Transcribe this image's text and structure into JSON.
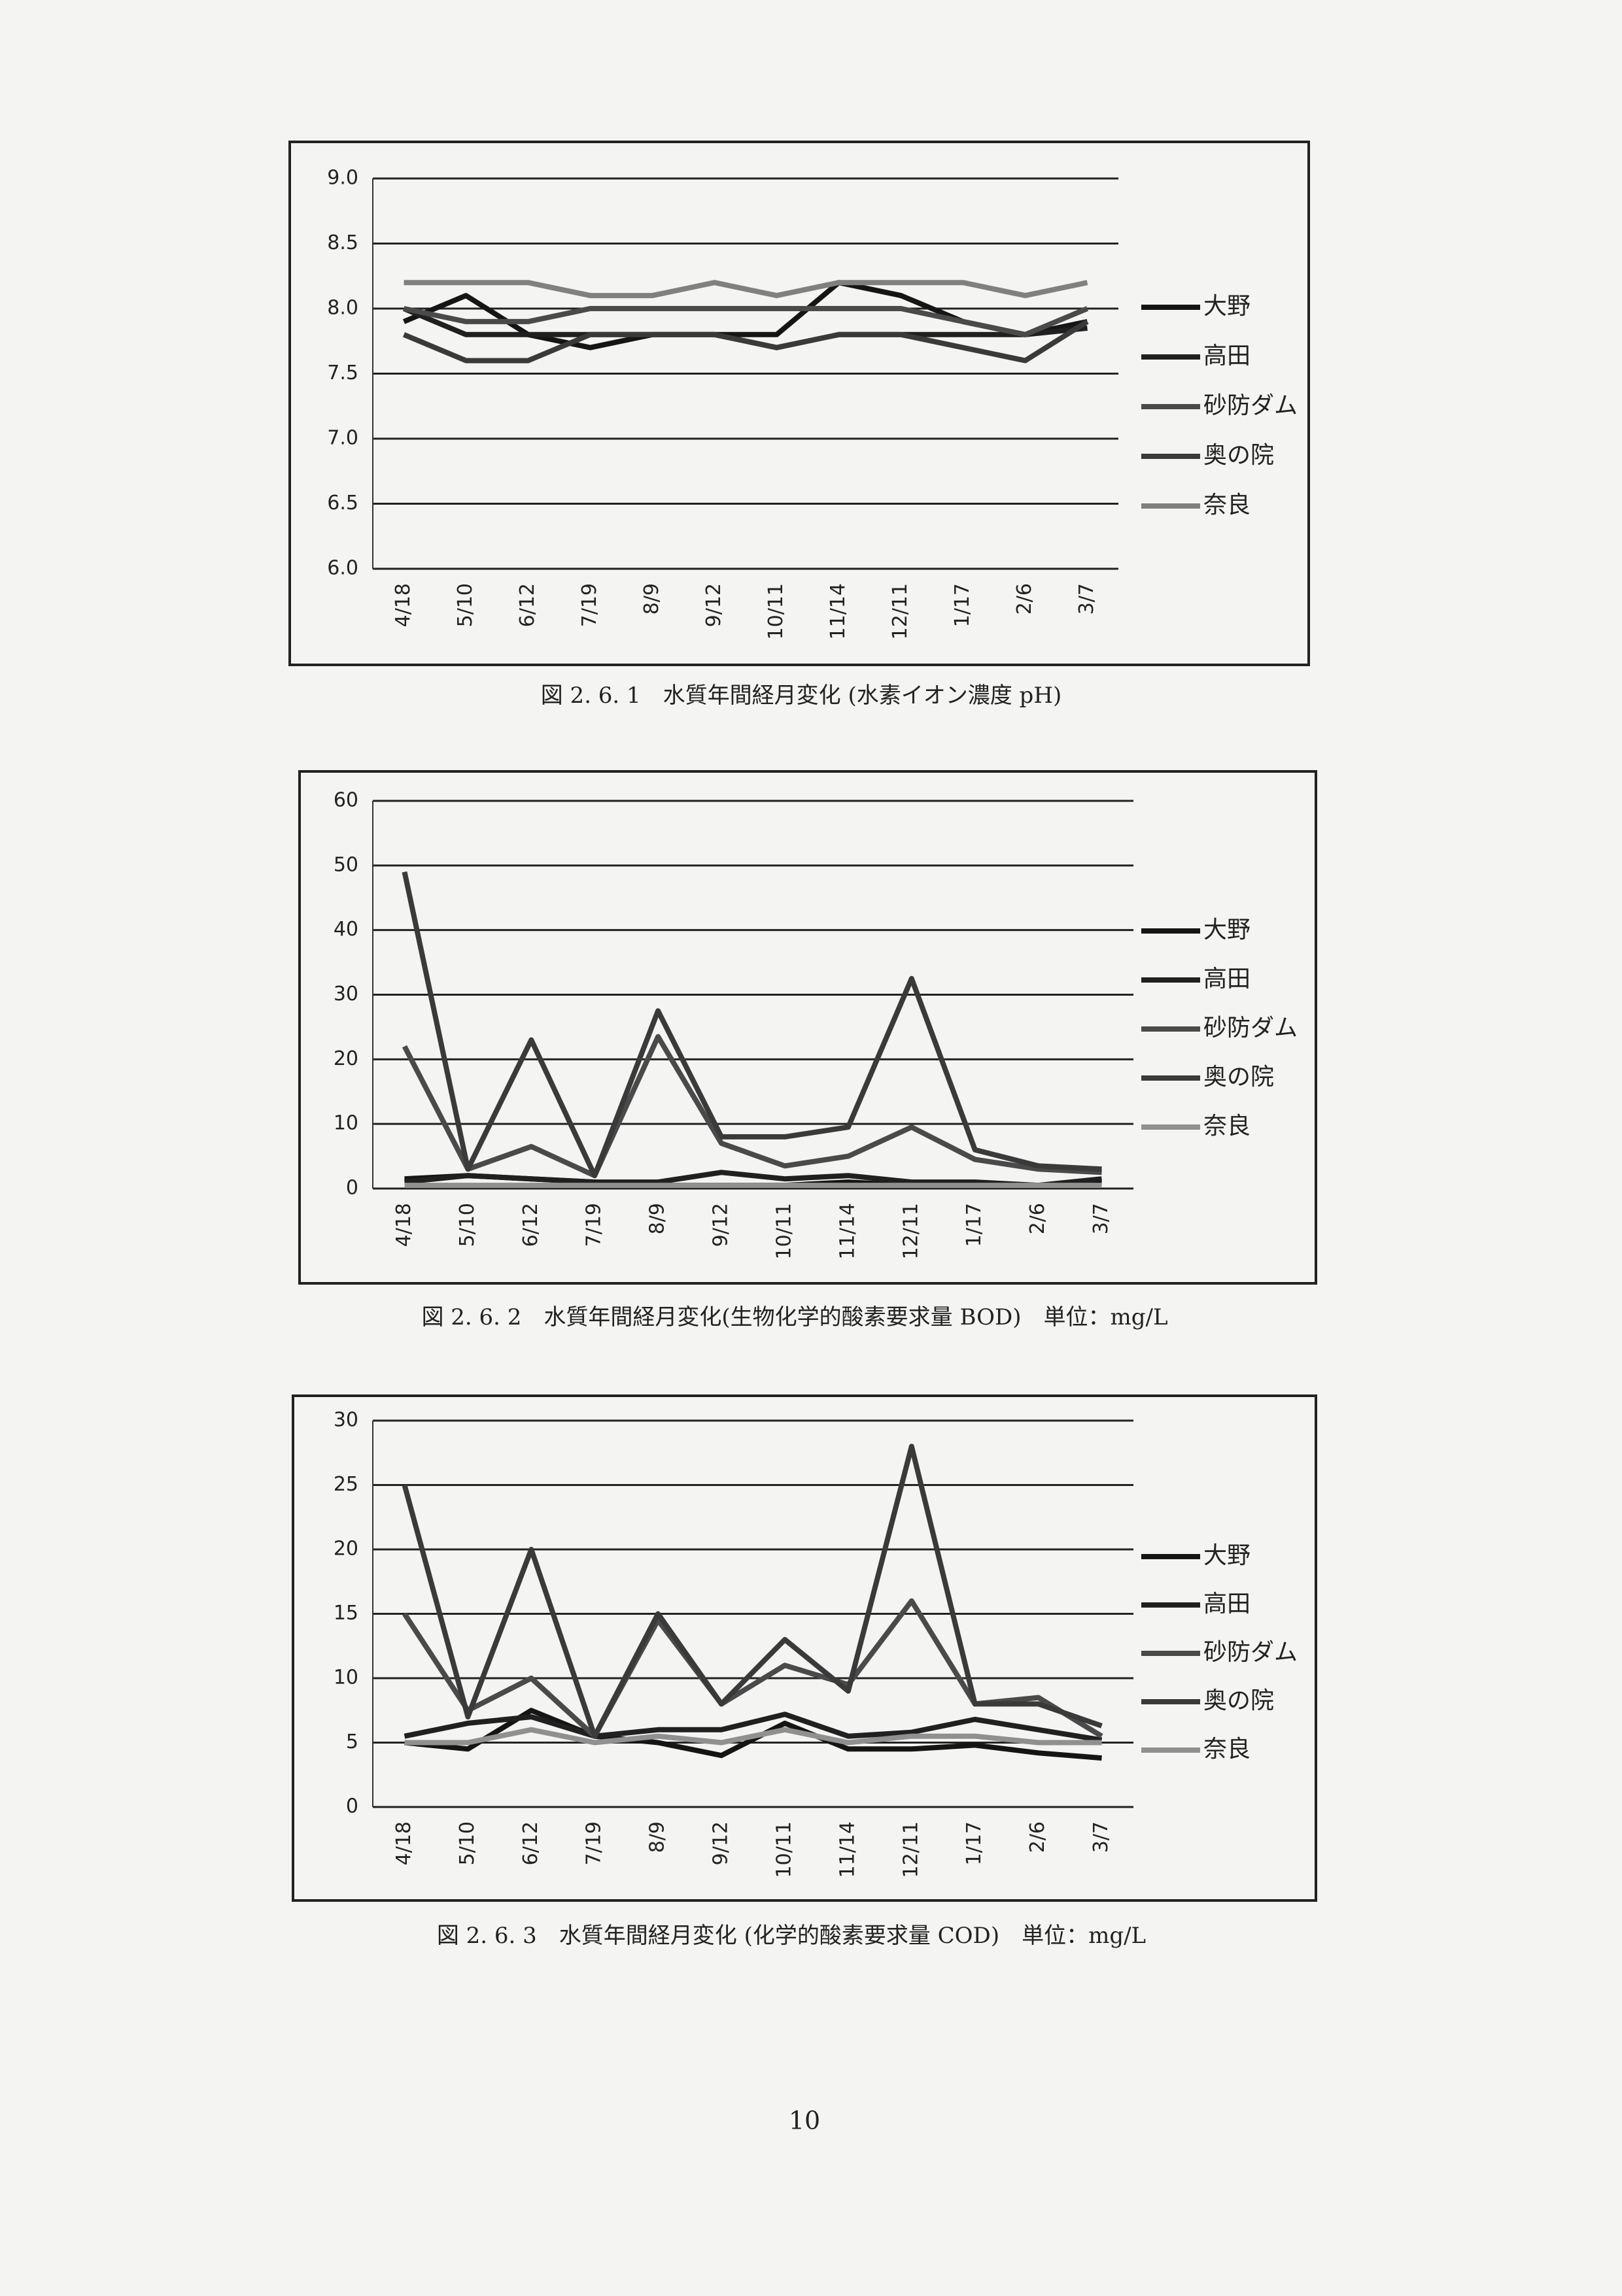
{
  "chart_data": [
    {
      "type": "line",
      "caption": "図 2. 6. 1　水質年間経月変化 (水素イオン濃度 pH)",
      "categories": [
        "4/18",
        "5/10",
        "6/12",
        "7/19",
        "8/9",
        "9/12",
        "10/11",
        "11/14",
        "12/11",
        "1/17",
        "2/6",
        "3/7"
      ],
      "ylim": [
        6,
        9
      ],
      "yticks": [
        {
          "value": 6,
          "label": "6.0"
        },
        {
          "value": 6.5,
          "label": "6.5"
        },
        {
          "value": 7,
          "label": "7.0"
        },
        {
          "value": 7.5,
          "label": "7.5"
        },
        {
          "value": 8,
          "label": "8.0"
        },
        {
          "value": 8.5,
          "label": "8.5"
        },
        {
          "value": 9,
          "label": "9.0"
        }
      ],
      "grid": true,
      "series": [
        {
          "name": "大野",
          "color": "#151515",
          "values": [
            7.9,
            8.1,
            7.8,
            7.7,
            7.8,
            7.8,
            7.8,
            8.2,
            8.1,
            7.9,
            7.8,
            7.9
          ]
        },
        {
          "name": "高田",
          "color": "#202020",
          "values": [
            8.0,
            7.8,
            7.8,
            7.8,
            7.8,
            7.8,
            7.7,
            7.8,
            7.8,
            7.8,
            7.8,
            7.85
          ]
        },
        {
          "name": "砂防ダム",
          "color": "#4a4a4a",
          "values": [
            8.0,
            7.9,
            7.9,
            8.0,
            8.0,
            8.0,
            8.0,
            8.0,
            8.0,
            7.9,
            7.8,
            8.0
          ]
        },
        {
          "name": "奥の院",
          "color": "#3a3a3a",
          "values": [
            7.8,
            7.6,
            7.6,
            7.8,
            7.8,
            7.8,
            7.7,
            7.8,
            7.8,
            7.7,
            7.6,
            7.9
          ]
        },
        {
          "name": "奈良",
          "color": "#808080",
          "values": [
            8.2,
            8.2,
            8.2,
            8.1,
            8.1,
            8.2,
            8.1,
            8.2,
            8.2,
            8.2,
            8.1,
            8.2
          ]
        }
      ]
    },
    {
      "type": "line",
      "caption": "図 2. 6. 2　水質年間経月変化(生物化学的酸素要求量 BOD)　単位：mg/L",
      "categories": [
        "4/18",
        "5/10",
        "6/12",
        "7/19",
        "8/9",
        "9/12",
        "10/11",
        "11/14",
        "12/11",
        "1/17",
        "2/6",
        "3/7"
      ],
      "ylim": [
        0,
        60
      ],
      "yticks": [
        0,
        10,
        20,
        30,
        40,
        50,
        60
      ],
      "grid": true,
      "series": [
        {
          "name": "大野",
          "color": "#151515",
          "values": [
            1.5,
            2,
            1.5,
            1,
            0.5,
            0.5,
            0.5,
            1,
            0.5,
            0.5,
            0.5,
            1
          ]
        },
        {
          "name": "高田",
          "color": "#202020",
          "values": [
            1,
            2,
            1.5,
            1,
            1,
            2.5,
            1.5,
            2,
            1,
            1,
            0.5,
            1.5
          ]
        },
        {
          "name": "砂防ダム",
          "color": "#4a4a4a",
          "values": [
            22,
            3,
            6.5,
            2,
            23.5,
            7,
            3.5,
            5,
            9.5,
            4.5,
            3,
            2.5
          ]
        },
        {
          "name": "奥の院",
          "color": "#3a3a3a",
          "values": [
            49,
            3,
            23,
            2,
            27.5,
            8,
            8,
            9.5,
            32.5,
            6,
            3.5,
            3
          ]
        },
        {
          "name": "奈良",
          "color": "#909090",
          "values": [
            0.5,
            0.5,
            0.5,
            0.5,
            0.5,
            0.5,
            0.5,
            0.5,
            0.5,
            0.5,
            0.5,
            0.5
          ]
        }
      ]
    },
    {
      "type": "line",
      "caption": "図 2. 6. 3　水質年間経月変化 (化学的酸素要求量 COD)　単位：mg/L",
      "categories": [
        "4/18",
        "5/10",
        "6/12",
        "7/19",
        "8/9",
        "9/12",
        "10/11",
        "11/14",
        "12/11",
        "1/17",
        "2/6",
        "3/7"
      ],
      "ylim": [
        0,
        30
      ],
      "yticks": [
        0,
        5,
        10,
        15,
        20,
        25,
        30
      ],
      "grid": true,
      "series": [
        {
          "name": "大野",
          "color": "#151515",
          "values": [
            5,
            4.5,
            7.5,
            5.5,
            5,
            4,
            6.5,
            4.5,
            4.5,
            4.8,
            4.2,
            3.8
          ]
        },
        {
          "name": "高田",
          "color": "#202020",
          "values": [
            5.5,
            6.5,
            7,
            5.5,
            6,
            6,
            7.2,
            5.5,
            5.8,
            6.8,
            6,
            5.2
          ]
        },
        {
          "name": "砂防ダム",
          "color": "#4a4a4a",
          "values": [
            15,
            7.5,
            10,
            5.5,
            14.5,
            8,
            11,
            9.5,
            16,
            8,
            8.5,
            5.5
          ]
        },
        {
          "name": "奥の院",
          "color": "#3a3a3a",
          "values": [
            25,
            7,
            20,
            5.5,
            15,
            8,
            13,
            9,
            28,
            8,
            8,
            6.3
          ]
        },
        {
          "name": "奈良",
          "color": "#909090",
          "values": [
            5,
            5,
            6,
            5,
            5.5,
            5,
            6,
            5,
            5.5,
            5.5,
            5,
            5
          ]
        }
      ]
    }
  ],
  "page_number": "10"
}
